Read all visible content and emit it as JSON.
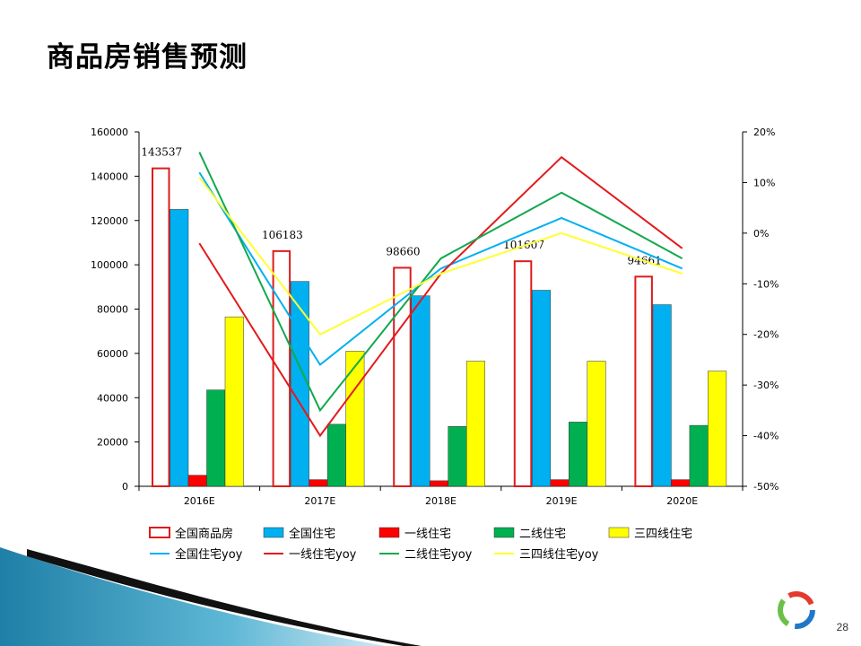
{
  "slide": {
    "title": "商品房销售预测",
    "page_number": "28"
  },
  "colors": {
    "total_commercial": "#dd1c1c",
    "national_residential": "#00b0f0",
    "tier1": "#ff0000",
    "tier2": "#00b050",
    "tier34": "#ffff00",
    "national_yoy": "#00b0f0",
    "tier1_yoy": "#e31a1c",
    "tier2_yoy": "#12a84e",
    "tier34_yoy": "#ffff33"
  },
  "chart_data": {
    "type": "bar",
    "categories": [
      "2016E",
      "2017E",
      "2018E",
      "2019E",
      "2020E"
    ],
    "y_left": {
      "range": [
        0,
        160000
      ],
      "ticks": [
        "0",
        "20000",
        "40000",
        "60000",
        "80000",
        "100000",
        "120000",
        "140000",
        "160000"
      ]
    },
    "y_right": {
      "range": [
        -50,
        20
      ],
      "ticks": [
        "-50%",
        "-40%",
        "-30%",
        "-20%",
        "-10%",
        "0%",
        "10%",
        "20%"
      ]
    },
    "grid": false,
    "legend_position": "bottom",
    "bar_series": [
      {
        "name": "全国商品房",
        "color": "#dd1c1c",
        "style": "outline",
        "values": [
          143537,
          106183,
          98660,
          101607,
          94661
        ],
        "data_labels": [
          "143537",
          "106183",
          "98660",
          "101607",
          "94661"
        ]
      },
      {
        "name": "全国住宅",
        "color": "#00b0f0",
        "style": "solid",
        "values": [
          125000,
          92500,
          86000,
          88500,
          82000
        ]
      },
      {
        "name": "一线住宅",
        "color": "#ff0000",
        "style": "solid",
        "values": [
          5000,
          3000,
          2500,
          3000,
          3000
        ]
      },
      {
        "name": "二线住宅",
        "color": "#00b050",
        "style": "solid",
        "values": [
          43500,
          28000,
          27000,
          29000,
          27500
        ]
      },
      {
        "name": "三四线住宅",
        "color": "#ffff00",
        "style": "solid",
        "values": [
          76500,
          61000,
          56500,
          56500,
          52000
        ]
      }
    ],
    "line_series": [
      {
        "name": "全国住宅yoy",
        "color": "#00b0f0",
        "values": [
          12,
          -26,
          -7,
          3,
          -7
        ]
      },
      {
        "name": "一线住宅yoy",
        "color": "#e31a1c",
        "values": [
          -2,
          -40,
          -8,
          15,
          -3
        ]
      },
      {
        "name": "二线住宅yoy",
        "color": "#12a84e",
        "values": [
          16,
          -35,
          -5,
          8,
          -5
        ]
      },
      {
        "name": "三四线住宅yoy",
        "color": "#ffff33",
        "values": [
          11,
          -20,
          -8,
          0,
          -8
        ]
      }
    ]
  }
}
